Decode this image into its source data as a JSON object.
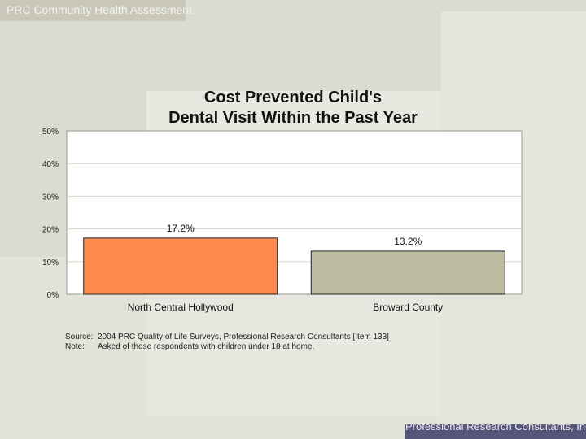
{
  "header": {
    "title": "PRC Community Health Assessment"
  },
  "footer": {
    "text": "Professional Research Consultants, Inc."
  },
  "source": {
    "source_label": "Source:",
    "source_text": "2004 PRC Quality of Life Surveys, Professional Research Consultants [Item 133]",
    "note_label": "Note:",
    "note_text": "Asked of those respondents with children under 18 at home."
  },
  "chart_data": {
    "type": "bar",
    "title_line1": "Cost Prevented Child's",
    "title_line2": "Dental Visit Within the Past Year",
    "categories": [
      "North Central Hollywood",
      "Broward County"
    ],
    "values": [
      17.2,
      13.2
    ],
    "data_labels": [
      "17.2%",
      "13.2%"
    ],
    "colors": [
      "#ff8c4f",
      "#bdbda4"
    ],
    "ylim": [
      0,
      50
    ],
    "yticks": [
      "0%",
      "10%",
      "20%",
      "30%",
      "40%",
      "50%"
    ],
    "xlabel": "",
    "ylabel": ""
  }
}
